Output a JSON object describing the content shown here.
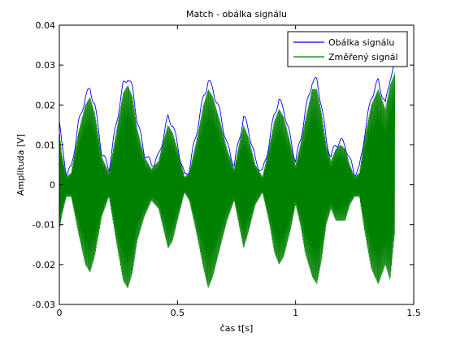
{
  "chart_data": {
    "type": "line",
    "title": "Match - obálka signálu",
    "xlabel": "čas t[s]",
    "ylabel": "Amplituda [V]",
    "xlim": [
      0,
      1.5
    ],
    "ylim": [
      -0.03,
      0.04
    ],
    "xticks": [
      0,
      0.5,
      1,
      1.5
    ],
    "xtick_labels": [
      "0",
      "0.5",
      "1",
      "1.5"
    ],
    "yticks": [
      -0.03,
      -0.02,
      -0.01,
      0,
      0.01,
      0.02,
      0.03,
      0.04
    ],
    "ytick_labels": [
      "-0.03",
      "-0.02",
      "-0.01",
      "0",
      "0.01",
      "0.02",
      "0.03",
      "0.04"
    ],
    "grid": false,
    "legend_position": "top-right",
    "series": [
      {
        "name": "Obálka signálu",
        "color": "#0000ff",
        "x": [
          0,
          0.01,
          0.03,
          0.05,
          0.08,
          0.11,
          0.13,
          0.15,
          0.18,
          0.21,
          0.24,
          0.27,
          0.29,
          0.31,
          0.33,
          0.36,
          0.39,
          0.42,
          0.44,
          0.46,
          0.48,
          0.5,
          0.53,
          0.55,
          0.58,
          0.61,
          0.63,
          0.65,
          0.68,
          0.71,
          0.74,
          0.76,
          0.78,
          0.8,
          0.83,
          0.86,
          0.89,
          0.91,
          0.93,
          0.95,
          0.98,
          1.0,
          1.02,
          1.04,
          1.07,
          1.09,
          1.11,
          1.13,
          1.15,
          1.17,
          1.19,
          1.21,
          1.23,
          1.25,
          1.27,
          1.29,
          1.32,
          1.35,
          1.38,
          1.4,
          1.42
        ],
        "y": [
          0.016,
          0.01,
          0.003,
          0.004,
          0.015,
          0.022,
          0.024,
          0.02,
          0.008,
          0.004,
          0.015,
          0.025,
          0.027,
          0.024,
          0.016,
          0.008,
          0.005,
          0.007,
          0.012,
          0.017,
          0.015,
          0.01,
          0.002,
          0.004,
          0.013,
          0.022,
          0.026,
          0.024,
          0.018,
          0.01,
          0.005,
          0.011,
          0.017,
          0.014,
          0.006,
          0.003,
          0.011,
          0.018,
          0.021,
          0.019,
          0.011,
          0.006,
          0.011,
          0.018,
          0.026,
          0.026,
          0.02,
          0.011,
          0.007,
          0.01,
          0.011,
          0.01,
          0.006,
          0.003,
          0.004,
          0.012,
          0.022,
          0.026,
          0.02,
          0.027,
          0.03
        ]
      },
      {
        "name": "Změřený signál",
        "color": "#008000",
        "x": [
          0,
          0.01,
          0.03,
          0.05,
          0.08,
          0.11,
          0.13,
          0.15,
          0.18,
          0.21,
          0.24,
          0.27,
          0.29,
          0.31,
          0.33,
          0.36,
          0.39,
          0.42,
          0.44,
          0.46,
          0.48,
          0.5,
          0.53,
          0.55,
          0.58,
          0.61,
          0.63,
          0.65,
          0.68,
          0.71,
          0.74,
          0.76,
          0.78,
          0.8,
          0.83,
          0.86,
          0.89,
          0.91,
          0.93,
          0.95,
          0.98,
          1.0,
          1.02,
          1.04,
          1.07,
          1.09,
          1.11,
          1.13,
          1.15,
          1.17,
          1.19,
          1.21,
          1.23,
          1.25,
          1.27,
          1.29,
          1.32,
          1.35,
          1.38,
          1.4,
          1.42
        ],
        "y_upper": [
          0.014,
          0.008,
          0.002,
          0.003,
          0.013,
          0.02,
          0.022,
          0.018,
          0.007,
          0.003,
          0.013,
          0.023,
          0.025,
          0.022,
          0.014,
          0.007,
          0.004,
          0.006,
          0.011,
          0.015,
          0.013,
          0.009,
          0.002,
          0.003,
          0.011,
          0.02,
          0.024,
          0.022,
          0.016,
          0.009,
          0.004,
          0.01,
          0.015,
          0.012,
          0.005,
          0.002,
          0.01,
          0.016,
          0.019,
          0.017,
          0.01,
          0.005,
          0.01,
          0.016,
          0.024,
          0.024,
          0.018,
          0.01,
          0.006,
          0.009,
          0.01,
          0.009,
          0.005,
          0.002,
          0.003,
          0.011,
          0.02,
          0.024,
          0.019,
          0.025,
          0.028
        ],
        "y_lower": [
          -0.012,
          -0.008,
          -0.003,
          -0.003,
          -0.012,
          -0.02,
          -0.022,
          -0.018,
          -0.008,
          -0.003,
          -0.014,
          -0.024,
          -0.026,
          -0.022,
          -0.014,
          -0.008,
          -0.004,
          -0.006,
          -0.011,
          -0.016,
          -0.014,
          -0.009,
          -0.002,
          -0.004,
          -0.012,
          -0.021,
          -0.026,
          -0.023,
          -0.016,
          -0.009,
          -0.004,
          -0.01,
          -0.016,
          -0.012,
          -0.005,
          -0.002,
          -0.01,
          -0.017,
          -0.02,
          -0.018,
          -0.011,
          -0.005,
          -0.01,
          -0.017,
          -0.023,
          -0.025,
          -0.019,
          -0.01,
          -0.006,
          -0.009,
          -0.009,
          -0.009,
          -0.005,
          -0.003,
          -0.003,
          -0.011,
          -0.021,
          -0.025,
          -0.02,
          -0.024,
          -0.012
        ]
      }
    ]
  }
}
